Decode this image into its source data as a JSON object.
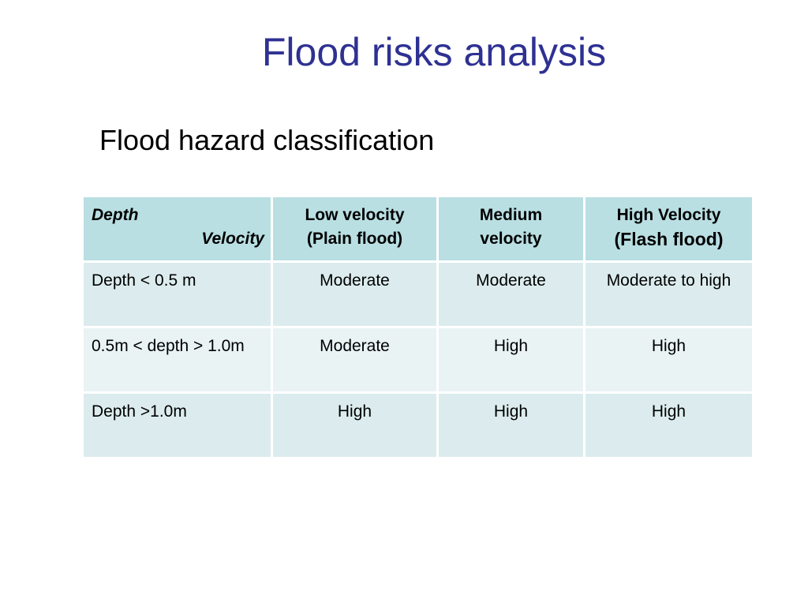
{
  "title": "Flood risks analysis",
  "subtitle": "Flood hazard classification",
  "table": {
    "corner": {
      "row_header": "Depth",
      "col_header": "Velocity"
    },
    "columns": [
      {
        "line1": "Low velocity",
        "line2": "(Plain flood)"
      },
      {
        "line1": "Medium",
        "line2": "velocity"
      },
      {
        "line1": "High Velocity",
        "line2": "(Flash flood)"
      }
    ],
    "rows": [
      {
        "label": "Depth < 0.5 m",
        "cells": [
          "Moderate",
          "Moderate",
          "Moderate to high"
        ]
      },
      {
        "label": "0.5m < depth > 1.0m",
        "cells": [
          "Moderate",
          "High",
          "High"
        ]
      },
      {
        "label": "Depth >1.0m",
        "cells": [
          "High",
          "High",
          "High"
        ]
      }
    ]
  },
  "colors": {
    "title": "#2e3192",
    "header_fill": "#b9dfe3",
    "row_fill_odd": "#dcecee",
    "row_fill_even": "#e9f3f4"
  }
}
